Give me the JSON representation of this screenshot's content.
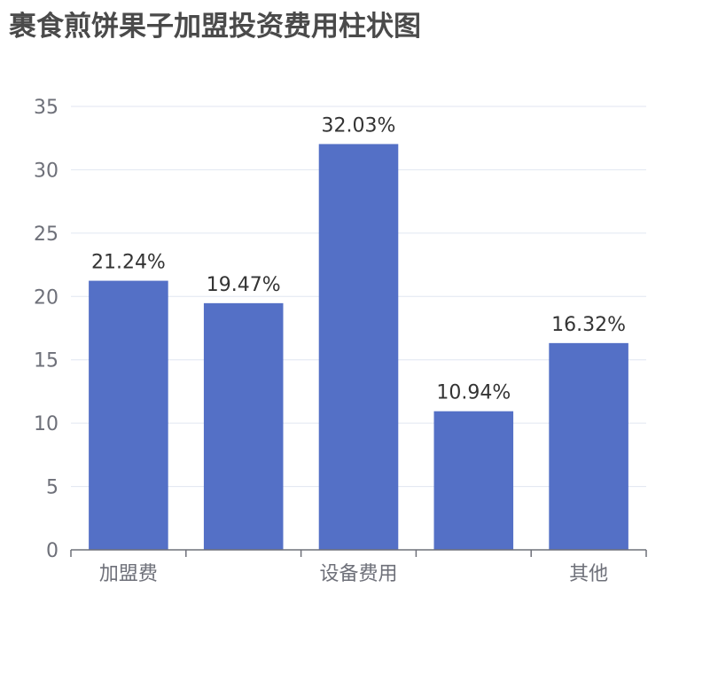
{
  "chart_data": {
    "type": "bar",
    "title": "裹食煎饼果子加盟投资费用柱状图",
    "categories": [
      "加盟费",
      "",
      "设备费用",
      "",
      "其他"
    ],
    "values": [
      21.24,
      19.47,
      32.03,
      10.94,
      16.32
    ],
    "data_labels": [
      "21.24%",
      "19.47%",
      "32.03%",
      "10.94%",
      "16.32%"
    ],
    "ylim": [
      0,
      35
    ],
    "yticks": [
      0,
      5,
      10,
      15,
      20,
      25,
      30,
      35
    ],
    "grid": true,
    "bar_color": "#5470c6",
    "grid_color": "#e0e6f1",
    "axis_color": "#6e7079"
  }
}
